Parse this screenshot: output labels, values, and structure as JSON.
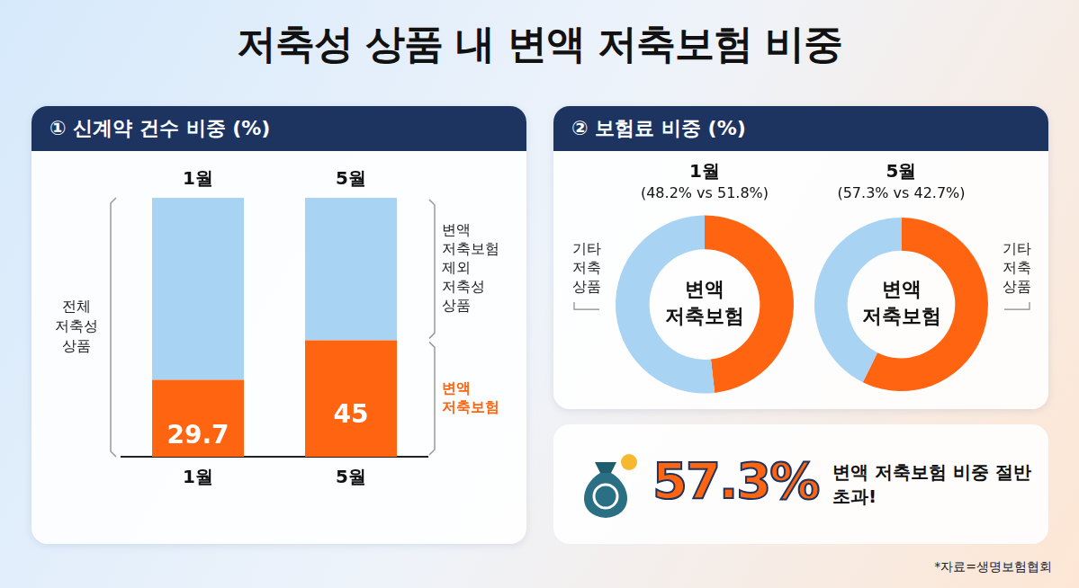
{
  "title": "저축성 상품 내 변액 저축보험 비중",
  "panels": [
    "① 신계약 건수 비중 (%)",
    "② 보험료 비중 (%)"
  ],
  "chart_data": [
    {
      "type": "bar",
      "stacked": true,
      "categories": [
        "1월",
        "5월"
      ],
      "y_label": "전체 저축성 상품",
      "ylim": [
        0,
        100
      ],
      "tick_labels": "x",
      "grid": false,
      "legend": "right",
      "series": [
        {
          "name": "변액 저축보험",
          "color": "#ff6410",
          "values": [
            29.7,
            45
          ],
          "data_labels": true
        },
        {
          "name": "변액 저축보험 제외 저축성 상품",
          "color": "#a8d3f3",
          "values": [
            70.3,
            55
          ],
          "data_labels": false
        }
      ]
    },
    {
      "type": "doughnut",
      "title": "1월",
      "subtitle": "(48.2% vs 51.8%)",
      "categories": [
        "변액 저축보험",
        "기타 저축 상품"
      ],
      "values": [
        48.2,
        51.8
      ],
      "colors": [
        "#ff6410",
        "#a8d3f3"
      ]
    },
    {
      "type": "doughnut",
      "title": "5월",
      "subtitle": "(57.3% vs 42.7%)",
      "categories": [
        "변액 저축보험",
        "기타 저축 상품"
      ],
      "values": [
        57.3,
        42.7
      ],
      "colors": [
        "#ff6410",
        "#a8d3f3"
      ]
    }
  ],
  "callout": {
    "figure": "57.3%",
    "text": "변액 저축보험 비중 절반 초과!"
  },
  "source": "*자료=생명보험협회"
}
